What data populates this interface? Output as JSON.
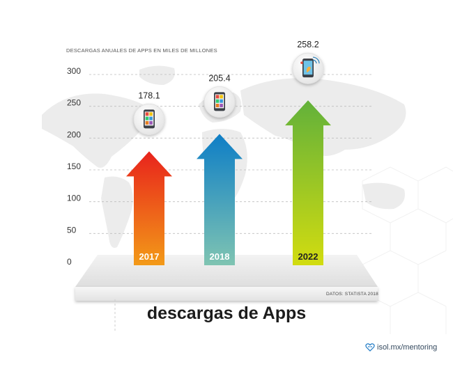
{
  "chart_data": {
    "type": "bar",
    "style": "arrows",
    "categories": [
      "2017",
      "2018",
      "2022"
    ],
    "values": [
      178.1,
      205.4,
      258.2
    ],
    "value_labels": [
      "178.1",
      "205.4",
      "258.2"
    ],
    "title": "descargas de Apps",
    "ylabel": "DESCARGAS ANUALES DE APPS EN MILES DE MILLONES",
    "xlabel": "",
    "ylim": [
      0,
      300
    ],
    "yticks": [
      0,
      50,
      100,
      150,
      200,
      250,
      300
    ],
    "ytick_labels": [
      "0",
      "50",
      "100",
      "150",
      "200",
      "250",
      "300"
    ],
    "grid": true,
    "source": "DATOS: STATISTA 2018",
    "colors": {
      "arrow_2017": [
        "#e8231c",
        "#f39a18"
      ],
      "arrow_2018": [
        "#0e7ec6",
        "#7fc4b2"
      ],
      "arrow_2022": [
        "#62b13a",
        "#d2dc10"
      ]
    },
    "icons": [
      "phone-apps-icon",
      "phone-apps-icon",
      "phone-notification-icon"
    ]
  },
  "brand": {
    "text": "isol.mx/mentoring",
    "icon": "heart-network-icon"
  }
}
